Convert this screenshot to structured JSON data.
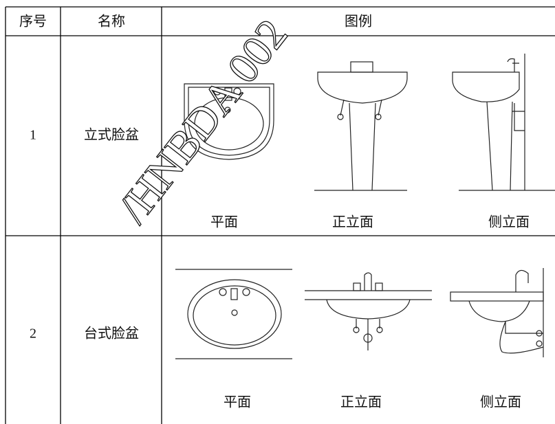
{
  "header": [
    "序号",
    "名称",
    "图例"
  ],
  "rows": [
    {
      "no": "1",
      "name": "立式脸盆",
      "views": [
        "平面",
        "正立面",
        "侧立面"
      ]
    },
    {
      "no": "2",
      "name": "台式脸盆",
      "views": [
        "平面",
        "正立面",
        "侧立面"
      ]
    }
  ],
  "watermark": "/HNBDA 002"
}
